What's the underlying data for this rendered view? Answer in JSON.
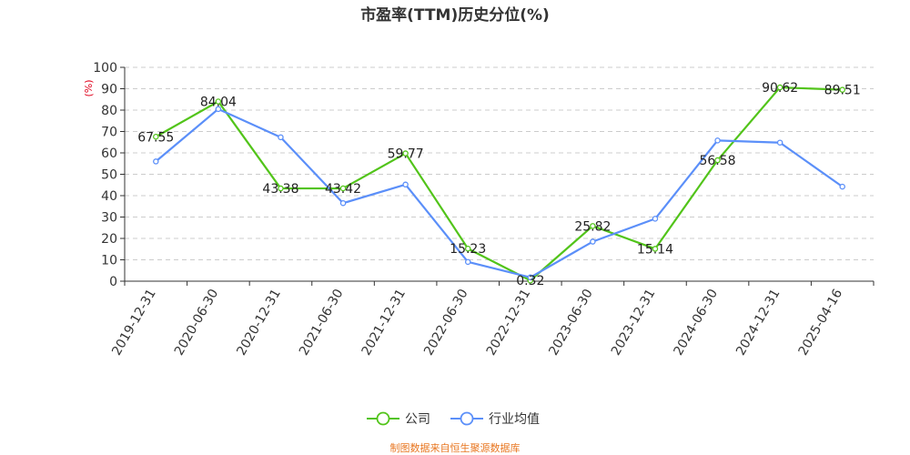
{
  "chart_data": {
    "type": "line",
    "title": "市盈率(TTM)历史分位(%)",
    "ylabel": "(%)",
    "ylim": [
      0,
      100
    ],
    "yticks": [
      0,
      10,
      20,
      30,
      40,
      50,
      60,
      70,
      80,
      90,
      100
    ],
    "grid": true,
    "legend": "bottom-center",
    "categories": [
      "2019-12-31",
      "2020-06-30",
      "2020-12-31",
      "2021-06-30",
      "2021-12-31",
      "2022-06-30",
      "2022-12-31",
      "2023-06-30",
      "2023-12-31",
      "2024-06-30",
      "2024-12-31",
      "2025-04-16"
    ],
    "series": [
      {
        "name": "公司",
        "color": "#52c41a",
        "values": [
          67.55,
          84.04,
          43.38,
          43.42,
          59.77,
          15.23,
          0.32,
          25.82,
          15.14,
          56.58,
          90.62,
          89.51
        ],
        "labels": [
          "67.55",
          "84.04",
          "43.38",
          "43.42",
          "59.77",
          "15.23",
          "0.32",
          "25.82",
          "15.14",
          "56.58",
          "90.62",
          "89.51"
        ]
      },
      {
        "name": "行业均值",
        "color": "#5b8ff9",
        "values": [
          56,
          80.5,
          67.3,
          36.5,
          45.2,
          9,
          1.8,
          18.5,
          29.2,
          65.8,
          64.8,
          44.2
        ]
      }
    ]
  },
  "source_note": "制图数据来自恒生聚源数据库",
  "colors": {
    "axis": "#333333",
    "grid": "#cccccc",
    "unit": "#e0001b",
    "source": "#e87722"
  }
}
